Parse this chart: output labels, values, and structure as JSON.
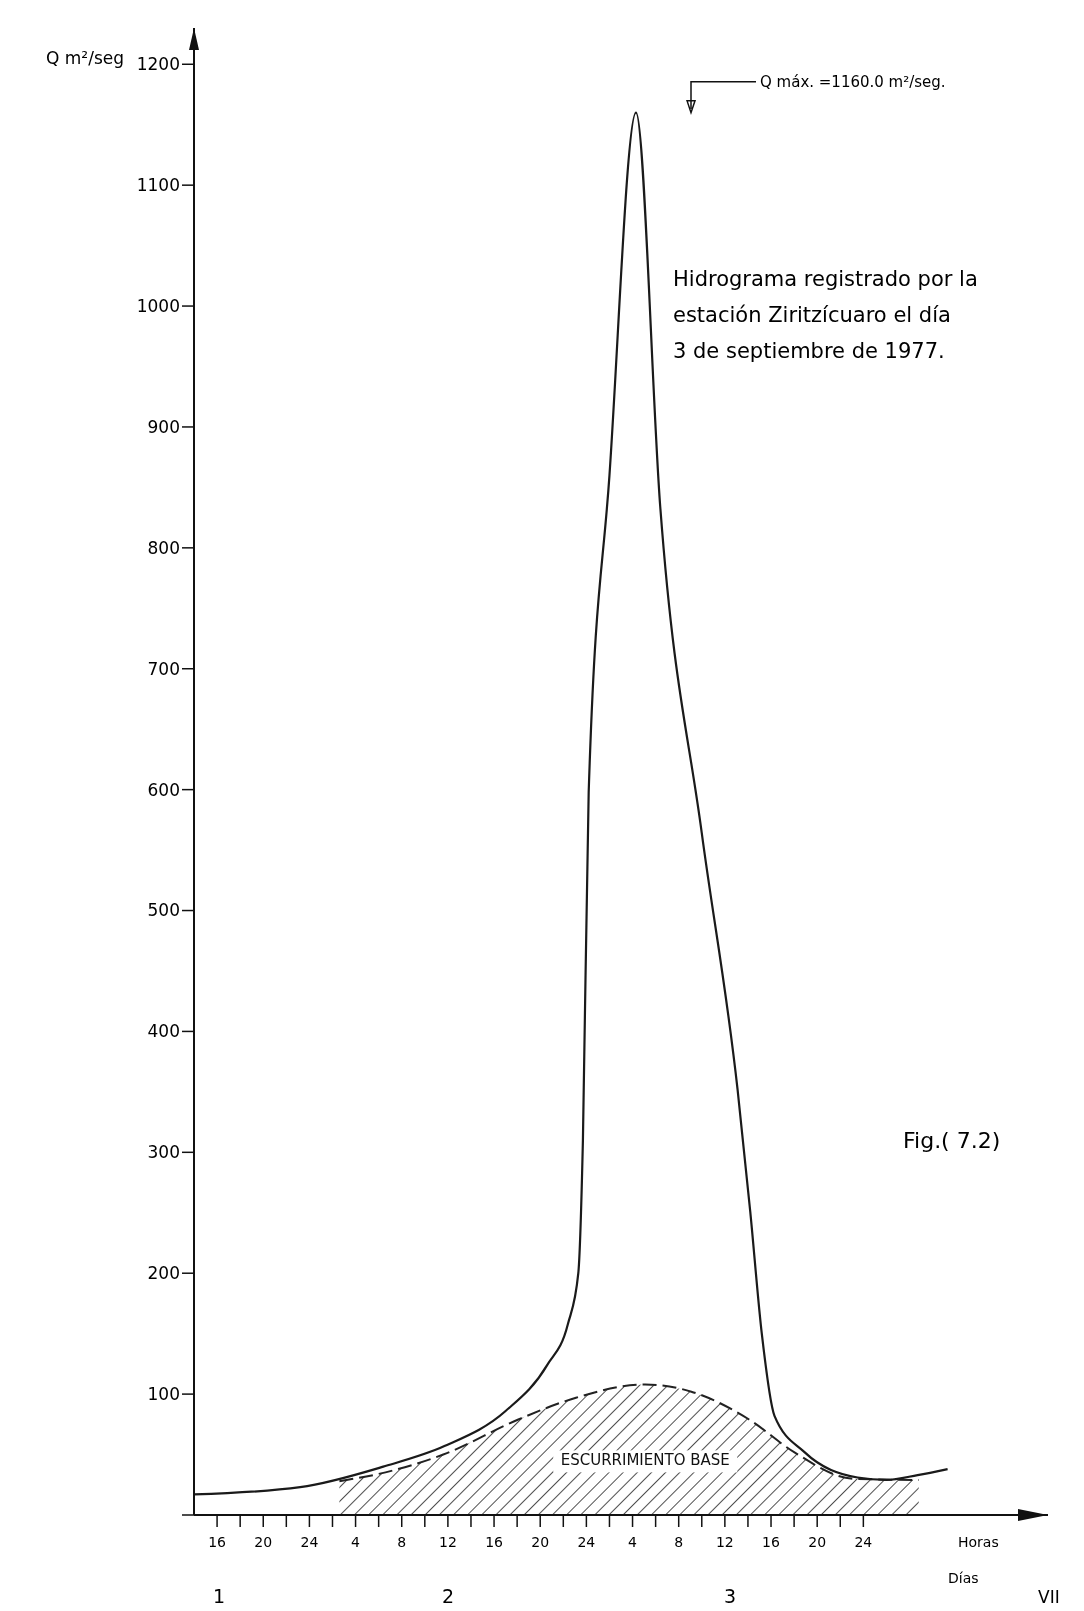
{
  "chart_data": {
    "type": "line",
    "title": "Hidrograma registrado por la estación Ziritzícuaro el día 3 de septiembre de 1977.",
    "ylabel": "Q m²/seg",
    "xlabel": "Horas",
    "xlim": [
      "1977-09-01T14:00",
      "1977-09-04T16:00"
    ],
    "ylim": [
      0,
      1230
    ],
    "xticks": [
      {
        "value": "1977-09-01T16:00",
        "label": "16"
      },
      {
        "value": "1977-09-01T18:00",
        "label": null
      },
      {
        "value": "1977-09-01T20:00",
        "label": "20"
      },
      {
        "value": "1977-09-01T22:00",
        "label": null
      },
      {
        "value": "1977-09-02T00:00",
        "label": "24"
      },
      {
        "value": "1977-09-02T02:00",
        "label": null
      },
      {
        "value": "1977-09-02T04:00",
        "label": "4"
      },
      {
        "value": "1977-09-02T06:00",
        "label": null
      },
      {
        "value": "1977-09-02T08:00",
        "label": "8"
      },
      {
        "value": "1977-09-02T10:00",
        "label": null
      },
      {
        "value": "1977-09-02T12:00",
        "label": "12"
      },
      {
        "value": "1977-09-02T14:00",
        "label": null
      },
      {
        "value": "1977-09-02T16:00",
        "label": "16"
      },
      {
        "value": "1977-09-02T18:00",
        "label": null
      },
      {
        "value": "1977-09-02T20:00",
        "label": "20"
      },
      {
        "value": "1977-09-02T22:00",
        "label": null
      },
      {
        "value": "1977-09-03T00:00",
        "label": "24"
      },
      {
        "value": "1977-09-03T02:00",
        "label": null
      },
      {
        "value": "1977-09-03T04:00",
        "label": "4"
      },
      {
        "value": "1977-09-03T06:00",
        "label": null
      },
      {
        "value": "1977-09-03T08:00",
        "label": "8"
      },
      {
        "value": "1977-09-03T10:00",
        "label": null
      },
      {
        "value": "1977-09-03T12:00",
        "label": "12"
      },
      {
        "value": "1977-09-03T14:00",
        "label": null
      },
      {
        "value": "1977-09-03T16:00",
        "label": "16"
      },
      {
        "value": "1977-09-03T18:00",
        "label": null
      },
      {
        "value": "1977-09-03T20:00",
        "label": "20"
      },
      {
        "value": "1977-09-03T22:00",
        "label": null
      },
      {
        "value": "1977-09-04T00:00",
        "label": "24"
      }
    ],
    "yticks": [
      {
        "value": 0,
        "label": null
      },
      100,
      200,
      300,
      400,
      500,
      600,
      700,
      800,
      900,
      1000,
      1100,
      1200
    ],
    "grid": false,
    "legend": false,
    "series": [
      {
        "type": "area",
        "name": "ESCURRIMIENTO BASE",
        "color": "#222222",
        "line_style": "dashed",
        "x": [
          "1977-09-02T02:36",
          "1977-09-02T06:00",
          "1977-09-02T11:36",
          "1977-09-02T18:06",
          "1977-09-02T23:06",
          "1977-09-03T05:06",
          "1977-09-03T09:06",
          "1977-09-03T14:06",
          "1977-09-03T18:00",
          "1977-09-03T23:06",
          "1977-09-04T04:48"
        ],
        "values": [
          28,
          34,
          50,
          79,
          97,
          108,
          102,
          79,
          52,
          30,
          29
        ]
      },
      {
        "color": "#1a1a1a",
        "line_style": "solid",
        "x": [
          "1977-09-01T14:00",
          "1977-09-01T23:12",
          "1977-09-02T06:24",
          "1977-09-02T11:42",
          "1977-09-02T17:00",
          "1977-09-02T20:36",
          "1977-09-02T22:24",
          "1977-09-02T23:18",
          "1977-09-02T23:42",
          "1977-09-03T00:12",
          "1977-09-03T02:00",
          "1977-09-03T04:18",
          "1977-09-03T06:24",
          "1977-09-03T10:00",
          "1977-09-03T13:06",
          "1977-09-03T14:12",
          "1977-09-03T15:12",
          "1977-09-03T16:18",
          "1977-09-03T18:54",
          "1977-09-03T23:30",
          "1977-09-04T02:00",
          "1977-09-04T04:42",
          "1977-09-04T07:18"
        ],
        "values": [
          17,
          23,
          40,
          57,
          86,
          124,
          158,
          200,
          310,
          598,
          860,
          1160,
          834,
          564,
          352,
          251,
          150,
          82,
          52,
          31,
          29,
          33,
          38
        ]
      }
    ],
    "annotations": [
      "Q máx. =1160.0 m²/seg.",
      "Fig.( 7.2)",
      "Días",
      "1",
      "2",
      "3",
      "VII"
    ]
  }
}
